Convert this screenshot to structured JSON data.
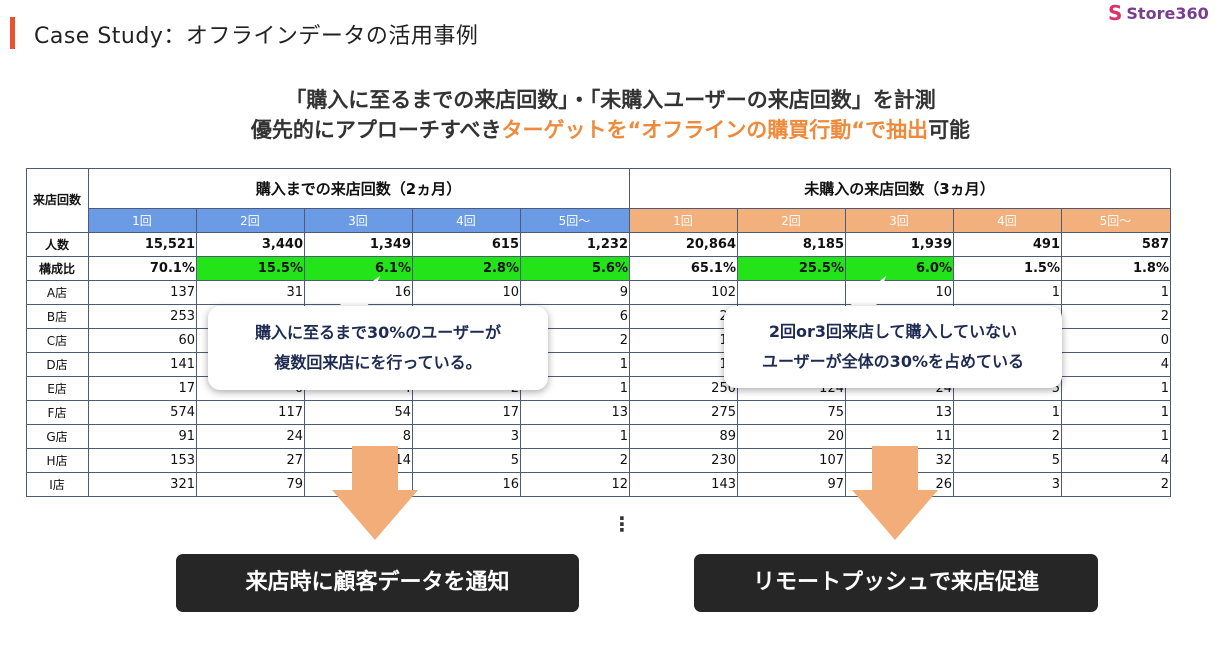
{
  "header": {
    "title": "Case Study：オフラインデータの活用事例",
    "logo": {
      "mark": "S",
      "text": "Store360",
      "brand_color": "#7a3e8f",
      "mark_color": "#d9336b",
      "icon": "store360-logo"
    }
  },
  "headline": {
    "line1": "「購入に至るまでの来店回数」・「未購入ユーザーの来店回数」を計測",
    "line2_a": "優先的にアプローチすべき",
    "line2_b": "ターゲットを“オフラインの購買行動“で抽出",
    "line2_c": "可能",
    "accent_color": "#ee8a3c"
  },
  "table": {
    "corner_label": "来店回数",
    "group_purchased": "購入までの来店回数（2ヵ月）",
    "group_not_purchased": "未購入の来店回数（3ヵ月）",
    "visits_purchased": [
      "1回",
      "2回",
      "3回",
      "4回",
      "5回～"
    ],
    "visits_not_purchased": [
      "1回",
      "2回",
      "3回",
      "4回",
      "5回～"
    ],
    "rows": [
      {
        "label": "人数",
        "bold": true,
        "values": [
          "15,521",
          "3,440",
          "1,349",
          "615",
          "1,232",
          "20,864",
          "8,185",
          "1,939",
          "491",
          "587"
        ]
      },
      {
        "label": "構成比",
        "bold": true,
        "values": [
          "70.1%",
          "15.5%",
          "6.1%",
          "2.8%",
          "5.6%",
          "65.1%",
          "25.5%",
          "6.0%",
          "1.5%",
          "1.8%"
        ],
        "highlight": [
          1,
          2,
          3,
          4,
          6,
          7
        ]
      },
      {
        "label": "A店",
        "values": [
          "137",
          "31",
          "16",
          "10",
          "9",
          "102",
          "",
          "10",
          "1",
          "1"
        ]
      },
      {
        "label": "B店",
        "values": [
          "253",
          "",
          "",
          "",
          "6",
          "25",
          "",
          "",
          "",
          "2"
        ]
      },
      {
        "label": "C店",
        "values": [
          "60",
          "",
          "",
          "",
          "2",
          "18",
          "",
          "",
          "",
          "0"
        ]
      },
      {
        "label": "D店",
        "values": [
          "141",
          "",
          "",
          "",
          "1",
          "19",
          "",
          "",
          "",
          "4"
        ]
      },
      {
        "label": "E店",
        "values": [
          "17",
          "6",
          "4",
          "2",
          "1",
          "250",
          "124",
          "24",
          "5",
          "1"
        ]
      },
      {
        "label": "F店",
        "values": [
          "574",
          "117",
          "54",
          "17",
          "13",
          "275",
          "75",
          "13",
          "1",
          "1"
        ]
      },
      {
        "label": "G店",
        "values": [
          "91",
          "24",
          "8",
          "3",
          "1",
          "89",
          "20",
          "11",
          "2",
          "1"
        ]
      },
      {
        "label": "H店",
        "values": [
          "153",
          "27",
          "14",
          "5",
          "2",
          "230",
          "107",
          "32",
          "5",
          "4"
        ]
      },
      {
        "label": "I店",
        "values": [
          "321",
          "79",
          "",
          "16",
          "12",
          "143",
          "97",
          "26",
          "3",
          "2"
        ]
      }
    ],
    "colors": {
      "purchased_header": "#6a9be4",
      "not_purchased_header": "#f2b07c",
      "highlight": "#22e418"
    }
  },
  "callouts": {
    "left": {
      "line1": "購入に至るまで30%のユーザーが",
      "line2": "複数回来店にを行っている。"
    },
    "right": {
      "line1": "2回or3回来店して購入していない",
      "line2": "ユーザーが全体の30%を占めている"
    }
  },
  "continuation": "⋮",
  "actions": {
    "left": "来店時に顧客データを通知",
    "right": "リモートプッシュで来店促進"
  }
}
